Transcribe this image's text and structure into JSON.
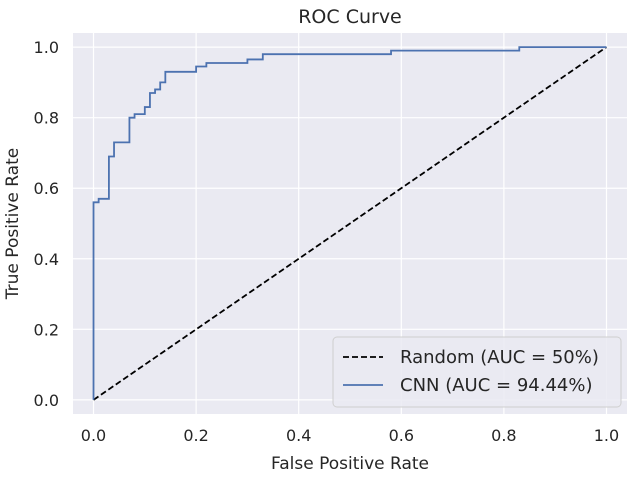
{
  "chart_data": {
    "type": "line",
    "title": "ROC Curve",
    "xlabel": "False Positive Rate",
    "ylabel": "True Positive Rate",
    "xlim": [
      -0.04,
      1.04
    ],
    "ylim": [
      -0.04,
      1.04
    ],
    "grid": true,
    "background_color": "#eaeaf2",
    "grid_color": "#ffffff",
    "legend_position": "lower-right",
    "xticks": [
      0.0,
      0.2,
      0.4,
      0.6,
      0.8,
      1.0
    ],
    "xtick_labels": [
      "0.0",
      "0.2",
      "0.4",
      "0.6",
      "0.8",
      "1.0"
    ],
    "yticks": [
      0.0,
      0.2,
      0.4,
      0.6,
      0.8,
      1.0
    ],
    "ytick_labels": [
      "0.0",
      "0.2",
      "0.4",
      "0.6",
      "0.8",
      "1.0"
    ],
    "series": [
      {
        "name": "Random (AUC = 50%)",
        "color": "#000000",
        "style": "dashed",
        "x": [
          0.0,
          1.0
        ],
        "y": [
          0.0,
          1.0
        ]
      },
      {
        "name": "CNN (AUC = 94.44%)",
        "color": "#4c72b0",
        "style": "solid",
        "x": [
          0.0,
          0.0,
          0.01,
          0.01,
          0.03,
          0.03,
          0.04,
          0.04,
          0.07,
          0.07,
          0.08,
          0.08,
          0.1,
          0.1,
          0.11,
          0.11,
          0.12,
          0.12,
          0.13,
          0.13,
          0.14,
          0.14,
          0.2,
          0.2,
          0.22,
          0.22,
          0.3,
          0.3,
          0.33,
          0.33,
          0.58,
          0.58,
          0.83,
          0.83,
          1.0
        ],
        "y": [
          0.0,
          0.56,
          0.56,
          0.57,
          0.57,
          0.69,
          0.69,
          0.73,
          0.73,
          0.8,
          0.8,
          0.81,
          0.81,
          0.83,
          0.83,
          0.87,
          0.87,
          0.88,
          0.88,
          0.9,
          0.9,
          0.93,
          0.93,
          0.945,
          0.945,
          0.955,
          0.955,
          0.965,
          0.965,
          0.98,
          0.98,
          0.99,
          0.99,
          1.0,
          1.0
        ]
      }
    ]
  }
}
